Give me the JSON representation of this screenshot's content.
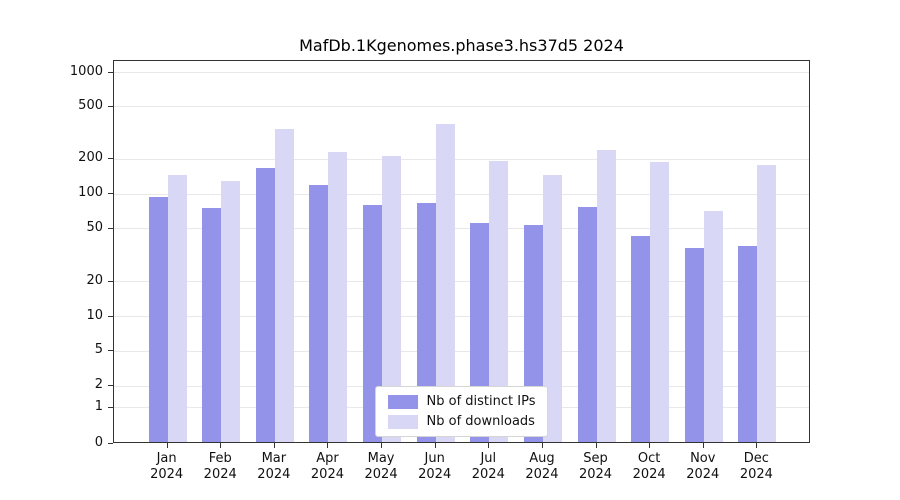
{
  "title": "MafDb.1Kgenomes.phase3.hs37d5 2024",
  "chart_data": {
    "type": "bar",
    "title": "MafDb.1Kgenomes.phase3.hs37d5 2024",
    "categories": [
      "Jan",
      "Feb",
      "Mar",
      "Apr",
      "May",
      "Jun",
      "Jul",
      "Aug",
      "Sep",
      "Oct",
      "Nov",
      "Dec"
    ],
    "year": "2024",
    "series": [
      {
        "name": "Nb of distinct IPs",
        "color": "#9393ea",
        "values": [
          90,
          73,
          160,
          115,
          78,
          80,
          54,
          52,
          74,
          43,
          35,
          36
        ]
      },
      {
        "name": "Nb of downloads",
        "color": "#d8d8f6",
        "values": [
          140,
          125,
          330,
          220,
          203,
          360,
          185,
          140,
          225,
          180,
          68,
          172
        ]
      }
    ],
    "yticks": [
      0,
      1,
      2,
      5,
      10,
      20,
      50,
      100,
      200,
      500,
      1000
    ],
    "xlabel": "",
    "ylabel": "",
    "scale": "log-like",
    "grid": "horizontal",
    "legend_position": "bottom-center-inside"
  }
}
